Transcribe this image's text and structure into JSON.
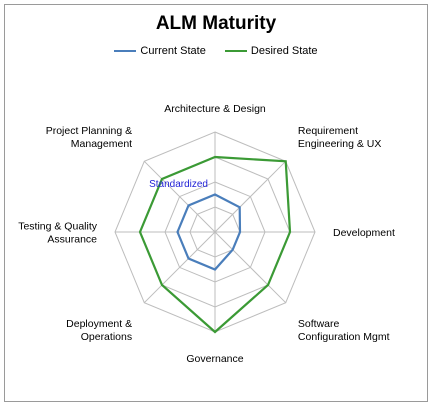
{
  "chart_data": {
    "type": "radar",
    "title": "ALM Maturity",
    "axes": [
      [
        "Architecture & Design"
      ],
      [
        "Requirement",
        "Engineering & UX"
      ],
      [
        "Development"
      ],
      [
        "Software",
        "Configuration Mgmt"
      ],
      [
        "Governance"
      ],
      [
        "Deployment &",
        "Operations"
      ],
      [
        "Testing & Quality",
        "Assurance"
      ],
      [
        "Project Planning &",
        "Management"
      ]
    ],
    "levels": 4,
    "range": [
      0,
      4
    ],
    "annotation": "Standardized",
    "legend_position": "top",
    "series": [
      {
        "name": "Current State",
        "color": "#4a7ebb",
        "values": [
          1.5,
          1.4,
          1.0,
          1.0,
          1.5,
          1.5,
          1.5,
          1.5
        ]
      },
      {
        "name": "Desired State",
        "color": "#3b9a35",
        "values": [
          3.0,
          4.0,
          3.0,
          3.0,
          4.0,
          3.0,
          3.0,
          3.0
        ]
      }
    ]
  }
}
